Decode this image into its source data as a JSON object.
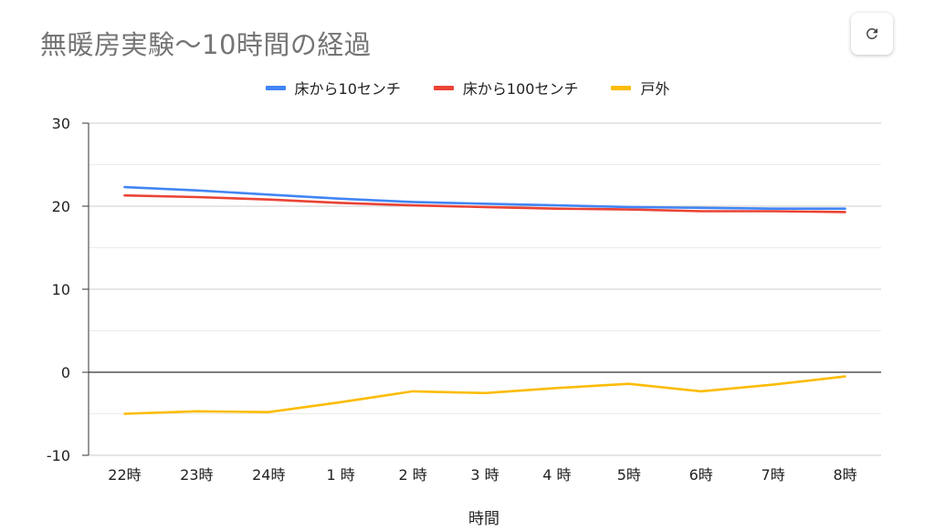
{
  "chart_data": {
    "type": "line",
    "title": "無暖房実験〜10時間の経過",
    "xlabel": "時間",
    "ylabel": "",
    "categories": [
      "22時",
      "23時",
      "24時",
      "1 時",
      "2 時",
      "3 時",
      "4 時",
      "5時",
      "6時",
      "7時",
      "8時"
    ],
    "ylim": [
      -10,
      30
    ],
    "yticks": [
      -10,
      0,
      10,
      20,
      30
    ],
    "yticks_labels": [
      "-10",
      "0",
      "10",
      "20",
      "30"
    ],
    "grid": true,
    "legend_position": "top",
    "series": [
      {
        "name": "床から10センチ",
        "color": "#4285f4",
        "values": [
          22.3,
          21.9,
          21.4,
          20.9,
          20.5,
          20.3,
          20.1,
          19.9,
          19.8,
          19.7,
          19.7
        ]
      },
      {
        "name": "床から100センチ",
        "color": "#ea4335",
        "values": [
          21.3,
          21.1,
          20.8,
          20.4,
          20.1,
          19.9,
          19.7,
          19.6,
          19.4,
          19.4,
          19.3
        ]
      },
      {
        "name": "戸外",
        "color": "#fbbc04",
        "values": [
          -5.0,
          -4.7,
          -4.8,
          -3.6,
          -2.3,
          -2.5,
          -1.9,
          -1.4,
          -2.3,
          -1.5,
          -0.5
        ]
      }
    ]
  },
  "toolbar": {
    "refresh_icon": "refresh-icon"
  }
}
